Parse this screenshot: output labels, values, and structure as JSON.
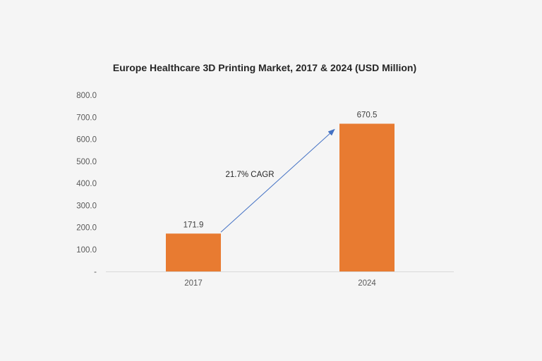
{
  "chart_data": {
    "type": "bar",
    "title": "Europe Healthcare 3D Printing Market, 2017 & 2024 (USD Million)",
    "categories": [
      "2017",
      "2024"
    ],
    "values": [
      171.9,
      670.5
    ],
    "data_labels": [
      "171.9",
      "670.5"
    ],
    "ylim": [
      0,
      800
    ],
    "y_ticks": [
      0,
      100,
      200,
      300,
      400,
      500,
      600,
      700,
      800
    ],
    "y_tick_labels": [
      "-",
      "100.0",
      "200.0",
      "300.0",
      "400.0",
      "500.0",
      "600.0",
      "700.0",
      "800.0"
    ],
    "xlabel": "",
    "ylabel": "",
    "grid": false,
    "bar_color": "#e87b31",
    "annotation": {
      "text": "21.7% CAGR",
      "arrow_color": "#4472c4"
    }
  }
}
